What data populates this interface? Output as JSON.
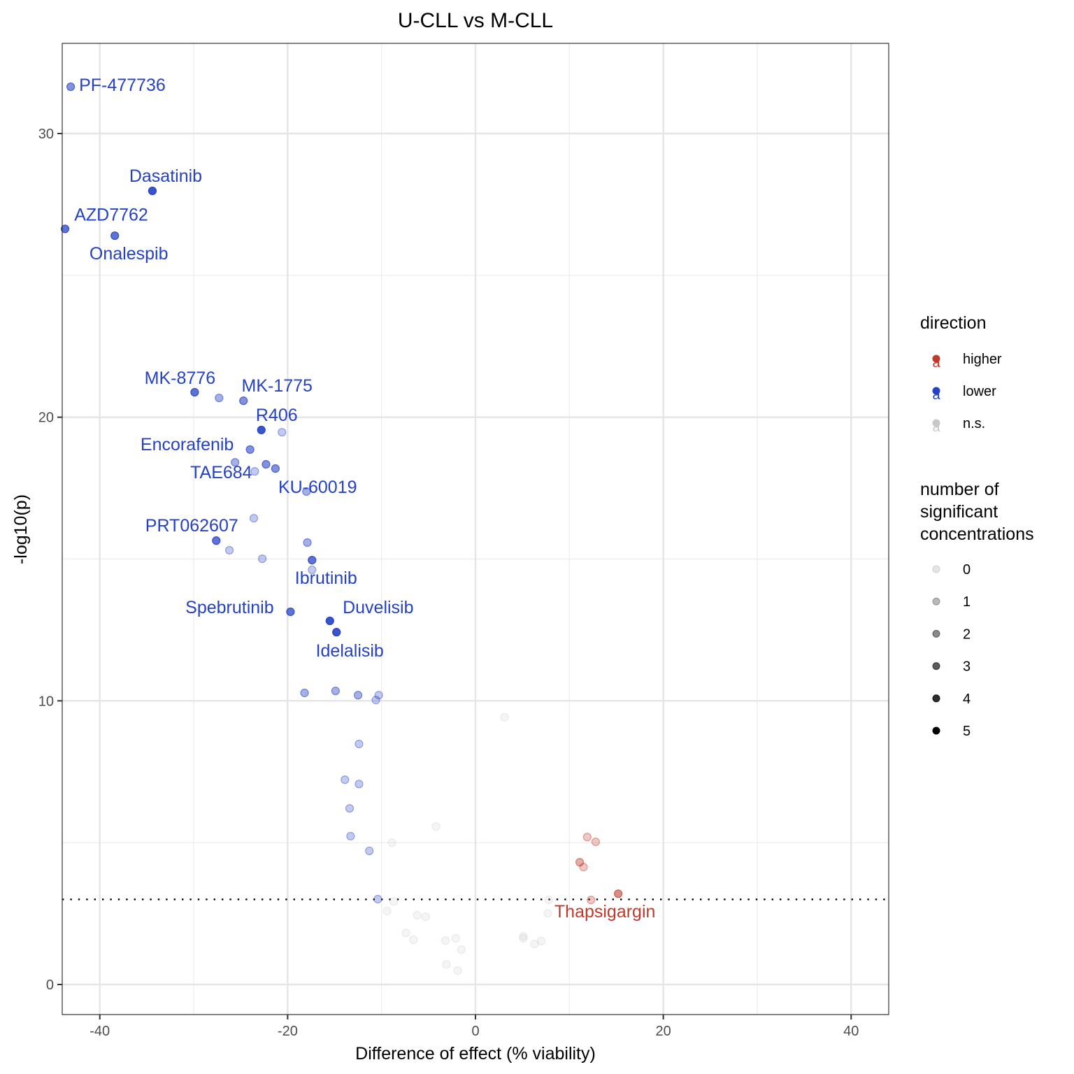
{
  "chart_data": {
    "type": "scatter",
    "title": "U-CLL vs M-CLL",
    "xlabel": "Difference of effect (% viability)",
    "ylabel": "-log10(p)",
    "xlim": [
      -44,
      44
    ],
    "ylim": [
      -1.06,
      33.18
    ],
    "xticks": [
      -40,
      -20,
      0,
      20,
      40
    ],
    "yticks": [
      0,
      10,
      20,
      30
    ],
    "grid": true,
    "threshold_line": {
      "y": 3.0,
      "style": "dotted"
    },
    "colors": {
      "higher": "#c0392b",
      "lower": "#2541c4",
      "n.s.": "#c8c8c8"
    },
    "legends": [
      {
        "title": "direction",
        "placement": "right",
        "entries": [
          {
            "label": "higher",
            "color": "#c0392b",
            "glyph": "a"
          },
          {
            "label": "lower",
            "color": "#2541c4",
            "glyph": "a"
          },
          {
            "label": "n.s.",
            "color": "#c8c8c8",
            "glyph": "a"
          }
        ]
      },
      {
        "title": [
          "number of",
          "significant",
          "concentrations"
        ],
        "placement": "right",
        "entries": [
          {
            "label": "0",
            "alpha": 0.1
          },
          {
            "label": "1",
            "alpha": 0.28
          },
          {
            "label": "2",
            "alpha": 0.46
          },
          {
            "label": "3",
            "alpha": 0.64
          },
          {
            "label": "4",
            "alpha": 0.82
          },
          {
            "label": "5",
            "alpha": 1.0
          }
        ]
      }
    ],
    "points": [
      {
        "x": -43.1,
        "y": 31.65,
        "direction": "lower",
        "n": 3,
        "label": "PF-477736"
      },
      {
        "x": -34.4,
        "y": 27.98,
        "direction": "lower",
        "n": 5,
        "label": "Dasatinib"
      },
      {
        "x": -43.7,
        "y": 26.64,
        "direction": "lower",
        "n": 4,
        "label": "AZD7762"
      },
      {
        "x": -38.4,
        "y": 26.4,
        "direction": "lower",
        "n": 4,
        "label": "Onalespib"
      },
      {
        "x": -29.9,
        "y": 20.88,
        "direction": "lower",
        "n": 4,
        "label": "MK-8776"
      },
      {
        "x": -27.3,
        "y": 20.68,
        "direction": "lower",
        "n": 2,
        "label": ""
      },
      {
        "x": -24.7,
        "y": 20.58,
        "direction": "lower",
        "n": 3,
        "label": "MK-1775"
      },
      {
        "x": -22.8,
        "y": 19.55,
        "direction": "lower",
        "n": 5,
        "label": "R406"
      },
      {
        "x": -20.6,
        "y": 19.47,
        "direction": "lower",
        "n": 1,
        "label": ""
      },
      {
        "x": -24.0,
        "y": 18.86,
        "direction": "lower",
        "n": 3,
        "label": "Encorafenib"
      },
      {
        "x": -25.6,
        "y": 18.41,
        "direction": "lower",
        "n": 2,
        "label": ""
      },
      {
        "x": -23.5,
        "y": 18.09,
        "direction": "lower",
        "n": 1,
        "label": "TAE684"
      },
      {
        "x": -22.3,
        "y": 18.34,
        "direction": "lower",
        "n": 3,
        "label": ""
      },
      {
        "x": -21.3,
        "y": 18.19,
        "direction": "lower",
        "n": 3,
        "label": ""
      },
      {
        "x": -18.0,
        "y": 17.38,
        "direction": "lower",
        "n": 2,
        "label": "KU-60019"
      },
      {
        "x": -23.6,
        "y": 16.44,
        "direction": "lower",
        "n": 1,
        "label": ""
      },
      {
        "x": -27.6,
        "y": 15.65,
        "direction": "lower",
        "n": 4,
        "label": "PRT062607"
      },
      {
        "x": -26.2,
        "y": 15.31,
        "direction": "lower",
        "n": 1,
        "label": ""
      },
      {
        "x": -22.7,
        "y": 15.01,
        "direction": "lower",
        "n": 1,
        "label": ""
      },
      {
        "x": -17.9,
        "y": 15.58,
        "direction": "lower",
        "n": 2,
        "label": ""
      },
      {
        "x": -17.4,
        "y": 14.96,
        "direction": "lower",
        "n": 4,
        "label": "Ibrutinib"
      },
      {
        "x": -17.4,
        "y": 14.62,
        "direction": "lower",
        "n": 1,
        "label": ""
      },
      {
        "x": -19.7,
        "y": 13.14,
        "direction": "lower",
        "n": 4,
        "label": "Spebrutinib"
      },
      {
        "x": -15.5,
        "y": 12.82,
        "direction": "lower",
        "n": 5,
        "label": "Duvelisib"
      },
      {
        "x": -14.8,
        "y": 12.42,
        "direction": "lower",
        "n": 5,
        "label": "Idelalisib"
      },
      {
        "x": -18.2,
        "y": 10.28,
        "direction": "lower",
        "n": 2,
        "label": ""
      },
      {
        "x": -14.9,
        "y": 10.35,
        "direction": "lower",
        "n": 2,
        "label": ""
      },
      {
        "x": -12.5,
        "y": 10.2,
        "direction": "lower",
        "n": 2,
        "label": ""
      },
      {
        "x": -10.3,
        "y": 10.2,
        "direction": "lower",
        "n": 1,
        "label": ""
      },
      {
        "x": -10.6,
        "y": 10.03,
        "direction": "lower",
        "n": 1,
        "label": ""
      },
      {
        "x": -12.4,
        "y": 8.48,
        "direction": "lower",
        "n": 1,
        "label": ""
      },
      {
        "x": -13.9,
        "y": 7.22,
        "direction": "lower",
        "n": 1,
        "label": ""
      },
      {
        "x": -12.4,
        "y": 7.07,
        "direction": "lower",
        "n": 1,
        "label": ""
      },
      {
        "x": -13.4,
        "y": 6.21,
        "direction": "lower",
        "n": 1,
        "label": ""
      },
      {
        "x": -13.3,
        "y": 5.23,
        "direction": "lower",
        "n": 1,
        "label": ""
      },
      {
        "x": -11.3,
        "y": 4.71,
        "direction": "lower",
        "n": 1,
        "label": ""
      },
      {
        "x": -10.4,
        "y": 3.01,
        "direction": "lower",
        "n": 1,
        "label": ""
      },
      {
        "x": 11.9,
        "y": 5.2,
        "direction": "higher",
        "n": 1,
        "label": ""
      },
      {
        "x": 12.8,
        "y": 5.03,
        "direction": "higher",
        "n": 1,
        "label": ""
      },
      {
        "x": 11.1,
        "y": 4.31,
        "direction": "higher",
        "n": 2,
        "label": ""
      },
      {
        "x": 11.5,
        "y": 4.14,
        "direction": "higher",
        "n": 1,
        "label": ""
      },
      {
        "x": 15.2,
        "y": 3.2,
        "direction": "higher",
        "n": 3,
        "label": "Thapsigargin"
      },
      {
        "x": 12.3,
        "y": 2.98,
        "direction": "higher",
        "n": 1,
        "label": ""
      },
      {
        "x": 3.1,
        "y": 9.42,
        "direction": "n.s.",
        "n": 0,
        "label": ""
      },
      {
        "x": -4.2,
        "y": 5.57,
        "direction": "n.s.",
        "n": 0,
        "label": ""
      },
      {
        "x": -8.9,
        "y": 5.0,
        "direction": "n.s.",
        "n": 0,
        "label": ""
      },
      {
        "x": -8.7,
        "y": 2.93,
        "direction": "n.s.",
        "n": 0,
        "label": ""
      },
      {
        "x": -9.4,
        "y": 2.59,
        "direction": "n.s.",
        "n": 0,
        "label": ""
      },
      {
        "x": -6.2,
        "y": 2.44,
        "direction": "n.s.",
        "n": 0,
        "label": ""
      },
      {
        "x": -5.3,
        "y": 2.39,
        "direction": "n.s.",
        "n": 0,
        "label": ""
      },
      {
        "x": -7.4,
        "y": 1.82,
        "direction": "n.s.",
        "n": 0,
        "label": ""
      },
      {
        "x": -6.6,
        "y": 1.58,
        "direction": "n.s.",
        "n": 0,
        "label": ""
      },
      {
        "x": -3.2,
        "y": 1.55,
        "direction": "n.s.",
        "n": 0,
        "label": ""
      },
      {
        "x": -2.1,
        "y": 1.63,
        "direction": "n.s.",
        "n": 0,
        "label": ""
      },
      {
        "x": -1.5,
        "y": 1.23,
        "direction": "n.s.",
        "n": 0,
        "label": ""
      },
      {
        "x": -3.1,
        "y": 0.71,
        "direction": "n.s.",
        "n": 0,
        "label": ""
      },
      {
        "x": -1.9,
        "y": 0.49,
        "direction": "n.s.",
        "n": 0,
        "label": ""
      },
      {
        "x": 5.1,
        "y": 1.7,
        "direction": "n.s.",
        "n": 0,
        "label": ""
      },
      {
        "x": 5.1,
        "y": 1.63,
        "direction": "n.s.",
        "n": 0,
        "label": ""
      },
      {
        "x": 6.3,
        "y": 1.43,
        "direction": "n.s.",
        "n": 0,
        "label": ""
      },
      {
        "x": 7.0,
        "y": 1.53,
        "direction": "n.s.",
        "n": 0,
        "label": ""
      },
      {
        "x": 7.7,
        "y": 2.51,
        "direction": "n.s.",
        "n": 0,
        "label": ""
      },
      {
        "x": 7.8,
        "y": 2.98,
        "direction": "n.s.",
        "n": 0,
        "label": ""
      }
    ]
  }
}
